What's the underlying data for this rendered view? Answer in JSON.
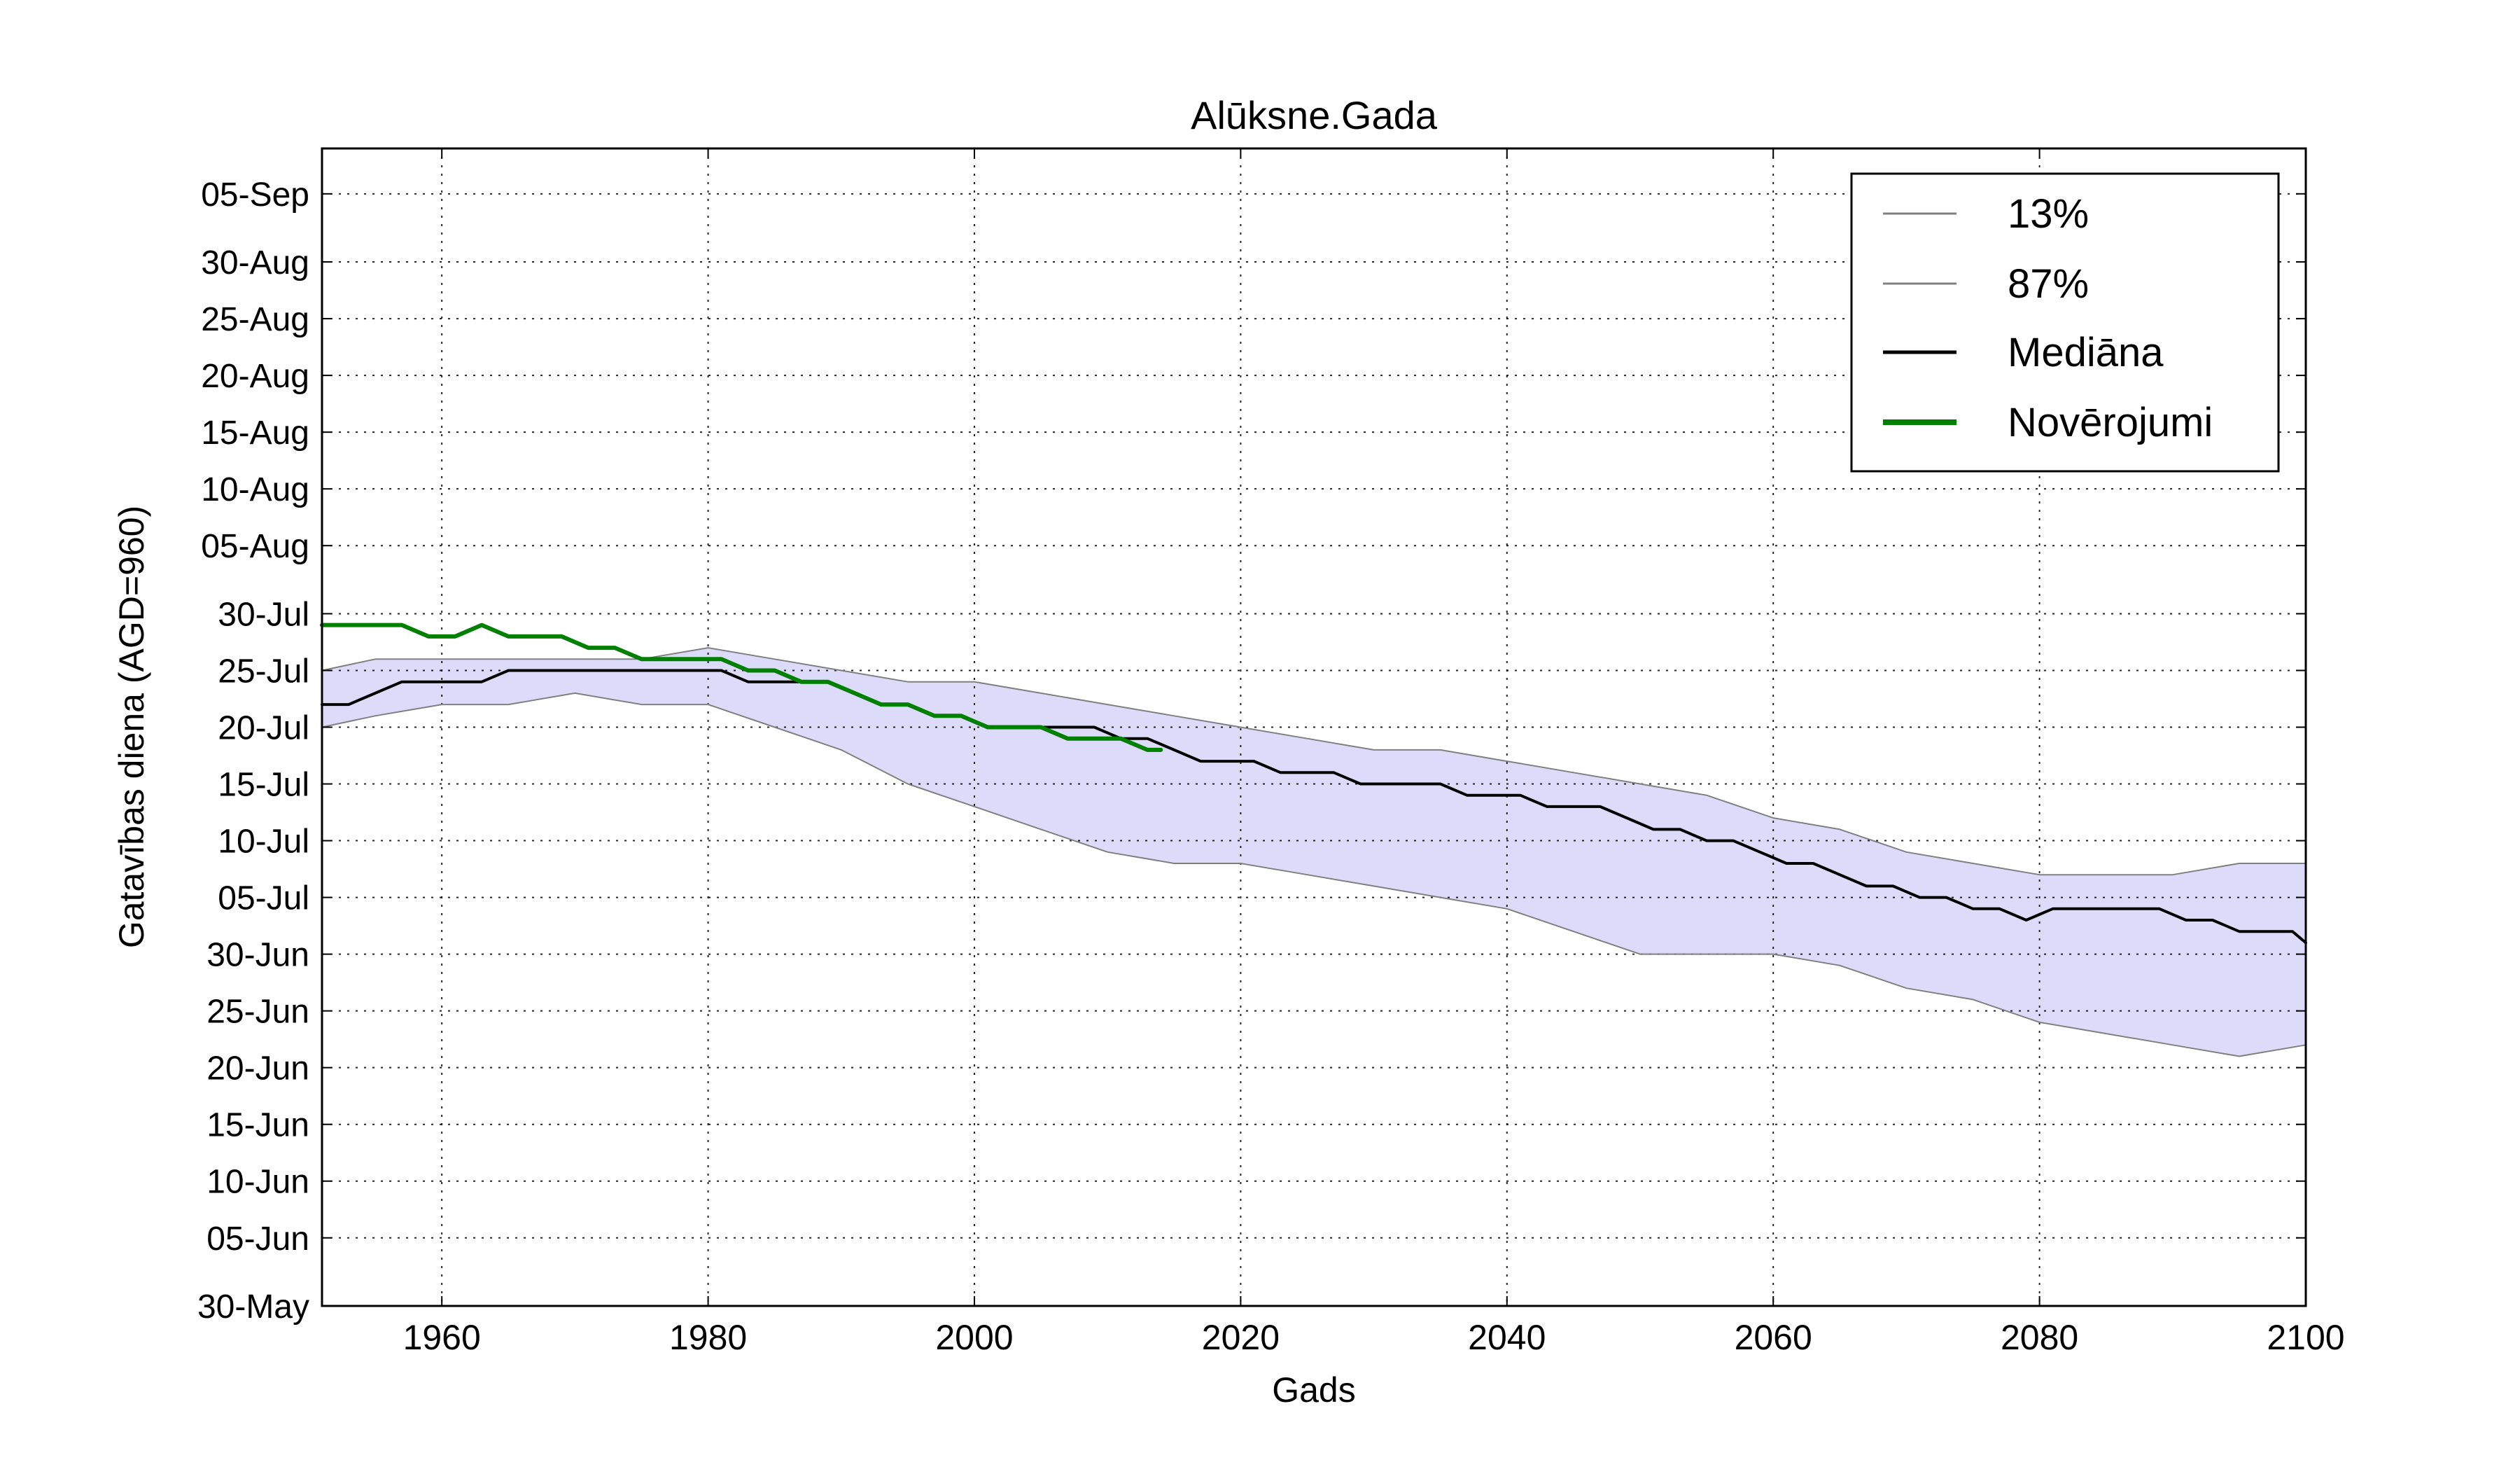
{
  "chart_data": {
    "type": "line",
    "title": "Alūksne.Gada",
    "xlabel": "Gads",
    "ylabel": "Gatavības diena (AGD=960)",
    "xlim": [
      1951,
      2100
    ],
    "ylim": [
      "2000-05-30",
      "2000-09-09"
    ],
    "x_ticks": [
      1960,
      1980,
      2000,
      2020,
      2040,
      2060,
      2080,
      2100
    ],
    "y_ticks": [
      {
        "label": "30-May",
        "date": "2000-05-30"
      },
      {
        "label": "05-Jun",
        "date": "2000-06-05"
      },
      {
        "label": "10-Jun",
        "date": "2000-06-10"
      },
      {
        "label": "15-Jun",
        "date": "2000-06-15"
      },
      {
        "label": "20-Jun",
        "date": "2000-06-20"
      },
      {
        "label": "25-Jun",
        "date": "2000-06-25"
      },
      {
        "label": "30-Jun",
        "date": "2000-06-30"
      },
      {
        "label": "05-Jul",
        "date": "2000-07-05"
      },
      {
        "label": "10-Jul",
        "date": "2000-07-10"
      },
      {
        "label": "15-Jul",
        "date": "2000-07-15"
      },
      {
        "label": "20-Jul",
        "date": "2000-07-20"
      },
      {
        "label": "25-Jul",
        "date": "2000-07-25"
      },
      {
        "label": "30-Jul",
        "date": "2000-07-30"
      },
      {
        "label": "05-Aug",
        "date": "2000-08-05"
      },
      {
        "label": "10-Aug",
        "date": "2000-08-10"
      },
      {
        "label": "15-Aug",
        "date": "2000-08-15"
      },
      {
        "label": "20-Aug",
        "date": "2000-08-20"
      },
      {
        "label": "25-Aug",
        "date": "2000-08-25"
      },
      {
        "label": "30-Aug",
        "date": "2000-08-30"
      },
      {
        "label": "05-Sep",
        "date": "2000-09-05"
      }
    ],
    "grid": true,
    "legend_position": "top-right",
    "band_color": "#dcdcfa",
    "legend": [
      {
        "label": "13%",
        "color": "#808080"
      },
      {
        "label": "87%",
        "color": "#808080"
      },
      {
        "label": "Mediāna",
        "color": "#000000"
      },
      {
        "label": "Novērojumi",
        "color": "#008000"
      }
    ],
    "series": [
      {
        "name": "13%",
        "color": "#808080",
        "width": 2,
        "x": [
          1951,
          1955,
          1960,
          1965,
          1970,
          1975,
          1980,
          1985,
          1990,
          1995,
          2000,
          2005,
          2010,
          2015,
          2020,
          2025,
          2030,
          2035,
          2040,
          2045,
          2050,
          2055,
          2060,
          2065,
          2070,
          2075,
          2080,
          2085,
          2090,
          2095,
          2100
        ],
        "y": [
          "2000-07-20",
          "2000-07-21",
          "2000-07-22",
          "2000-07-22",
          "2000-07-23",
          "2000-07-22",
          "2000-07-22",
          "2000-07-20",
          "2000-07-18",
          "2000-07-15",
          "2000-07-13",
          "2000-07-11",
          "2000-07-09",
          "2000-07-08",
          "2000-07-08",
          "2000-07-07",
          "2000-07-06",
          "2000-07-05",
          "2000-07-04",
          "2000-07-02",
          "2000-06-30",
          "2000-06-30",
          "2000-06-30",
          "2000-06-29",
          "2000-06-27",
          "2000-06-26",
          "2000-06-24",
          "2000-06-23",
          "2000-06-22",
          "2000-06-21",
          "2000-06-22"
        ]
      },
      {
        "name": "87%",
        "color": "#808080",
        "width": 2,
        "x": [
          1951,
          1955,
          1960,
          1965,
          1970,
          1975,
          1980,
          1985,
          1990,
          1995,
          2000,
          2005,
          2010,
          2015,
          2020,
          2025,
          2030,
          2035,
          2040,
          2045,
          2050,
          2055,
          2060,
          2065,
          2070,
          2075,
          2080,
          2085,
          2090,
          2095,
          2100
        ],
        "y": [
          "2000-07-25",
          "2000-07-26",
          "2000-07-26",
          "2000-07-26",
          "2000-07-26",
          "2000-07-26",
          "2000-07-27",
          "2000-07-26",
          "2000-07-25",
          "2000-07-24",
          "2000-07-24",
          "2000-07-23",
          "2000-07-22",
          "2000-07-21",
          "2000-07-20",
          "2000-07-19",
          "2000-07-18",
          "2000-07-18",
          "2000-07-17",
          "2000-07-16",
          "2000-07-15",
          "2000-07-14",
          "2000-07-12",
          "2000-07-11",
          "2000-07-09",
          "2000-07-08",
          "2000-07-07",
          "2000-07-07",
          "2000-07-07",
          "2000-07-08",
          "2000-07-08"
        ]
      },
      {
        "name": "Mediāna",
        "color": "#000000",
        "width": 4,
        "x": [
          1951,
          1953,
          1955,
          1957,
          1959,
          1961,
          1963,
          1965,
          1967,
          1969,
          1971,
          1973,
          1975,
          1977,
          1979,
          1981,
          1983,
          1985,
          1987,
          1989,
          1991,
          1993,
          1995,
          1997,
          1999,
          2001,
          2003,
          2005,
          2007,
          2009,
          2011,
          2013,
          2015,
          2017,
          2019,
          2021,
          2023,
          2025,
          2027,
          2029,
          2031,
          2033,
          2035,
          2037,
          2039,
          2041,
          2043,
          2045,
          2047,
          2049,
          2051,
          2053,
          2055,
          2057,
          2059,
          2061,
          2063,
          2065,
          2067,
          2069,
          2071,
          2073,
          2075,
          2077,
          2079,
          2081,
          2083,
          2085,
          2087,
          2089,
          2091,
          2093,
          2095,
          2097,
          2099,
          2100
        ],
        "y": [
          "2000-07-22",
          "2000-07-22",
          "2000-07-23",
          "2000-07-24",
          "2000-07-24",
          "2000-07-24",
          "2000-07-24",
          "2000-07-25",
          "2000-07-25",
          "2000-07-25",
          "2000-07-25",
          "2000-07-25",
          "2000-07-25",
          "2000-07-25",
          "2000-07-25",
          "2000-07-25",
          "2000-07-24",
          "2000-07-24",
          "2000-07-24",
          "2000-07-24",
          "2000-07-23",
          "2000-07-22",
          "2000-07-22",
          "2000-07-21",
          "2000-07-21",
          "2000-07-20",
          "2000-07-20",
          "2000-07-20",
          "2000-07-20",
          "2000-07-20",
          "2000-07-19",
          "2000-07-19",
          "2000-07-18",
          "2000-07-17",
          "2000-07-17",
          "2000-07-17",
          "2000-07-16",
          "2000-07-16",
          "2000-07-16",
          "2000-07-15",
          "2000-07-15",
          "2000-07-15",
          "2000-07-15",
          "2000-07-14",
          "2000-07-14",
          "2000-07-14",
          "2000-07-13",
          "2000-07-13",
          "2000-07-13",
          "2000-07-12",
          "2000-07-11",
          "2000-07-11",
          "2000-07-10",
          "2000-07-10",
          "2000-07-09",
          "2000-07-08",
          "2000-07-08",
          "2000-07-07",
          "2000-07-06",
          "2000-07-06",
          "2000-07-05",
          "2000-07-05",
          "2000-07-04",
          "2000-07-04",
          "2000-07-03",
          "2000-07-04",
          "2000-07-04",
          "2000-07-04",
          "2000-07-04",
          "2000-07-04",
          "2000-07-03",
          "2000-07-03",
          "2000-07-02",
          "2000-07-02",
          "2000-07-02",
          "2000-07-01"
        ]
      },
      {
        "name": "Novērojumi",
        "color": "#008000",
        "width": 6,
        "x": [
          1951,
          1953,
          1955,
          1957,
          1959,
          1961,
          1963,
          1965,
          1967,
          1969,
          1971,
          1973,
          1975,
          1977,
          1979,
          1981,
          1983,
          1985,
          1987,
          1989,
          1991,
          1993,
          1995,
          1997,
          1999,
          2001,
          2003,
          2005,
          2007,
          2009,
          2011,
          2013,
          2014
        ],
        "y": [
          "2000-07-29",
          "2000-07-29",
          "2000-07-29",
          "2000-07-29",
          "2000-07-28",
          "2000-07-28",
          "2000-07-29",
          "2000-07-28",
          "2000-07-28",
          "2000-07-28",
          "2000-07-27",
          "2000-07-27",
          "2000-07-26",
          "2000-07-26",
          "2000-07-26",
          "2000-07-26",
          "2000-07-25",
          "2000-07-25",
          "2000-07-24",
          "2000-07-24",
          "2000-07-23",
          "2000-07-22",
          "2000-07-22",
          "2000-07-21",
          "2000-07-21",
          "2000-07-20",
          "2000-07-20",
          "2000-07-20",
          "2000-07-19",
          "2000-07-19",
          "2000-07-19",
          "2000-07-18",
          "2000-07-18"
        ]
      }
    ]
  }
}
